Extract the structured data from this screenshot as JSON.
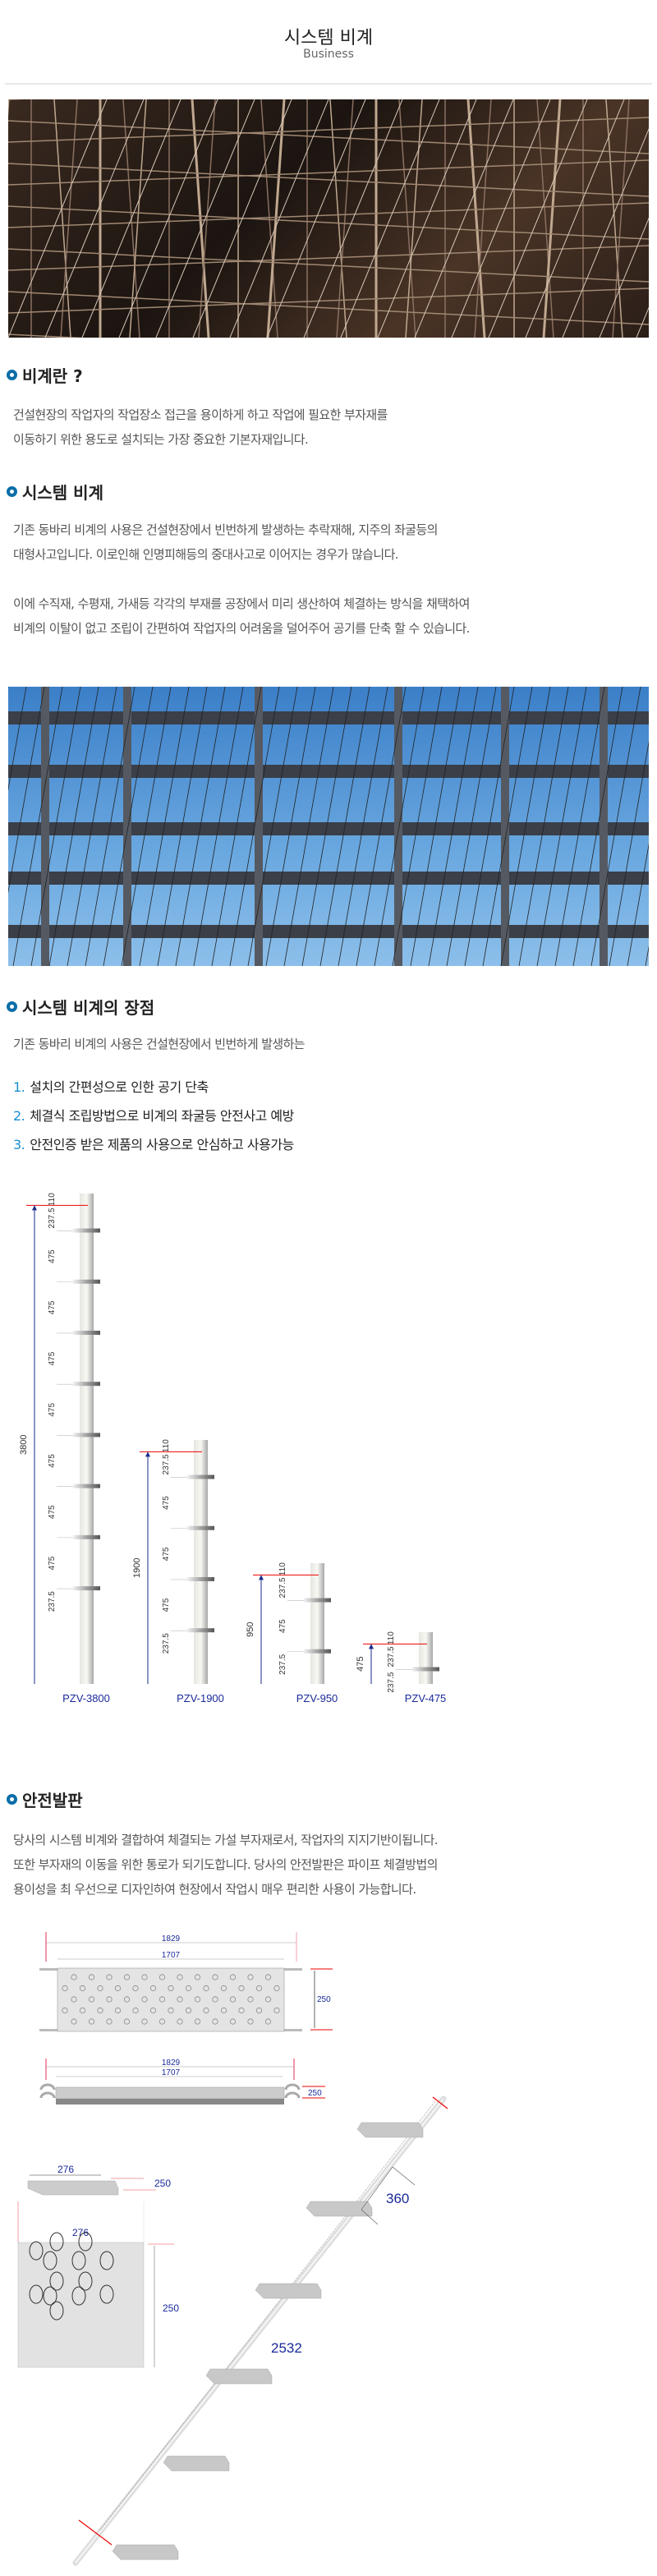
{
  "header": {
    "title": "시스템 비계",
    "subtitle": "Business"
  },
  "colors": {
    "accent": "#0a6ea8",
    "list_number": "#1a8fd0",
    "dimension_text": "#1a2a9a"
  },
  "sections": {
    "what": {
      "heading": "비계란 ?",
      "lines": [
        "건설현장의 작업자의 작업장소 접근을 용이하게 하고 작업에 필요한 부자재를",
        "이동하기 위한 용도로 설치되는 가장 중요한 기본자재입니다."
      ]
    },
    "system": {
      "heading": "시스템 비계",
      "lines": [
        "기존 동바리 비계의 사용은 건설현장에서 빈번하게 발생하는 추락재해, 지주의 좌굴등의",
        "대형사고입니다. 이로인해 인명피해등의 중대사고로 이어지는 경우가 많습니다.",
        "이에 수직재, 수평재, 가새등 각각의 부재를 공장에서 미리 생산하여 체결하는 방식을 채택하여",
        "비계의 이탈이 없고 조립이 간편하여 작업자의 어려움을 덜어주어 공기를 단축 할 수 있습니다."
      ]
    },
    "advantages": {
      "heading": "시스템 비계의 장점",
      "intro": "기존 동바리 비계의 사용은 건설현장에서 빈번하게 발생하는",
      "items": [
        {
          "num": "1.",
          "text": "설치의 간편성으로 인한 공기 단축"
        },
        {
          "num": "2.",
          "text": "체결식 조립방법으로 비계의 좌굴등 안전사고 예방"
        },
        {
          "num": "3.",
          "text": "안전인증 받은 제품의 사용으로 안심하고 사용가능"
        }
      ]
    },
    "platform": {
      "heading": "안전발판",
      "lines": [
        "당사의 시스템 비계와 결합하여 체결되는 가설 부자재로서, 작업자의 지지기반이됩니다.",
        "또한 부자재의 이동을 위한 통로가 되기도합니다. 당사의 안전발판은 파이프 체결방법의",
        "용이성을 최 우선으로 디자인하여 현장에서 작업시 매우 편리한 사용이 가능합니다."
      ]
    }
  },
  "verticals": [
    {
      "model": "PZV-3800",
      "total": "3800",
      "segments": [
        "110",
        "237.5",
        "475",
        "475",
        "475",
        "475",
        "475",
        "475",
        "475",
        "237.5"
      ]
    },
    {
      "model": "PZV-1900",
      "total": "1900",
      "segments": [
        "110",
        "237.5",
        "475",
        "475",
        "475",
        "237.5"
      ]
    },
    {
      "model": "PZV-950",
      "total": "950",
      "segments": [
        "110",
        "237.5",
        "475",
        "237.5"
      ]
    },
    {
      "model": "PZV-475",
      "total": "475",
      "segments": [
        "110",
        "237.5",
        "237.5"
      ]
    }
  ],
  "plank": {
    "overall": "1829",
    "inner": "1707",
    "width": "250"
  },
  "stair": {
    "tread_width": "276",
    "tread_depth": "250",
    "riser": "360",
    "length": "2532"
  }
}
